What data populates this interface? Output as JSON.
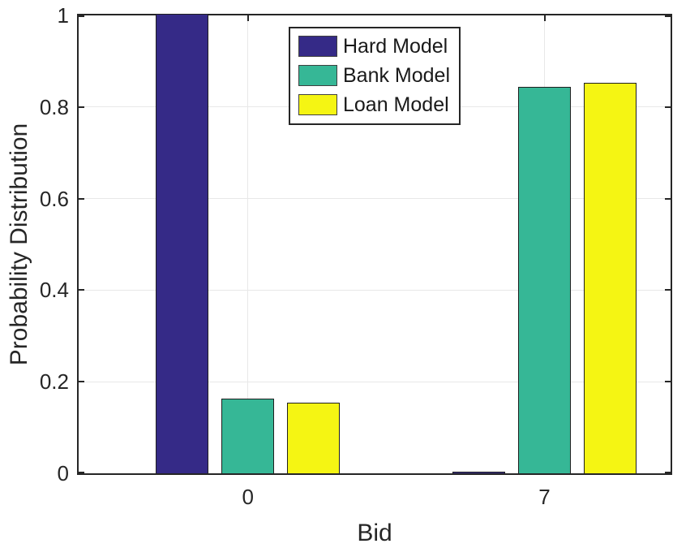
{
  "figure": {
    "background_color": "#ffffff",
    "axis_color": "#262626",
    "grid_color": "#e8e8e8",
    "bar_edge_color": "#1f1f1f"
  },
  "chart_data": {
    "type": "bar",
    "title": "",
    "xlabel": "Bid",
    "ylabel": "Probability Distribution",
    "categories": [
      "0",
      "7"
    ],
    "series": [
      {
        "name": "Hard Model",
        "color": "#352a87",
        "values": [
          1,
          0
        ]
      },
      {
        "name": "Bank Model",
        "color": "#36b796",
        "values": [
          0.16,
          0.84
        ]
      },
      {
        "name": "Loan Model",
        "color": "#f5f513",
        "values": [
          0.15,
          0.85
        ]
      }
    ],
    "ylim": [
      0,
      1
    ],
    "yticks": [
      0,
      0.2,
      0.4,
      0.6,
      0.8,
      1
    ],
    "ytick_labels": [
      "0",
      "0.2",
      "0.4",
      "0.6",
      "0.8",
      "1"
    ],
    "grid": true,
    "legend_position": "upper-left-of-center",
    "legend_border": true
  }
}
